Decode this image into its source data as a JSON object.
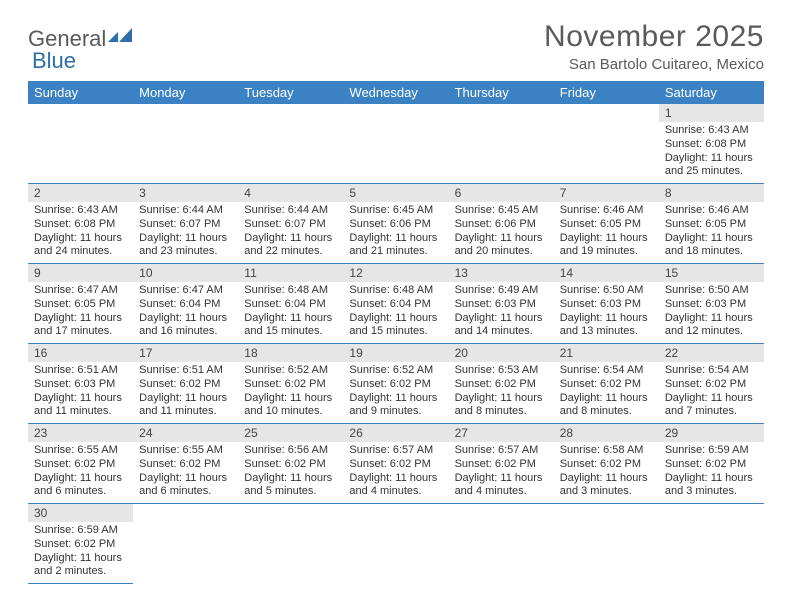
{
  "brand": {
    "part1": "General",
    "part2": "Blue"
  },
  "title": "November 2025",
  "location": "San Bartolo Cuitareo, Mexico",
  "colors": {
    "header_bg": "#3b82c4",
    "header_text": "#ffffff",
    "daynum_bg": "#e6e6e6",
    "border": "#3b82c4",
    "text": "#333333",
    "brand_gray": "#5a5a5a",
    "brand_blue": "#2f6fa8"
  },
  "weekdays": [
    "Sunday",
    "Monday",
    "Tuesday",
    "Wednesday",
    "Thursday",
    "Friday",
    "Saturday"
  ],
  "weeks": [
    [
      null,
      null,
      null,
      null,
      null,
      null,
      {
        "n": "1",
        "sr": "Sunrise: 6:43 AM",
        "ss": "Sunset: 6:08 PM",
        "d1": "Daylight: 11 hours",
        "d2": "and 25 minutes."
      }
    ],
    [
      {
        "n": "2",
        "sr": "Sunrise: 6:43 AM",
        "ss": "Sunset: 6:08 PM",
        "d1": "Daylight: 11 hours",
        "d2": "and 24 minutes."
      },
      {
        "n": "3",
        "sr": "Sunrise: 6:44 AM",
        "ss": "Sunset: 6:07 PM",
        "d1": "Daylight: 11 hours",
        "d2": "and 23 minutes."
      },
      {
        "n": "4",
        "sr": "Sunrise: 6:44 AM",
        "ss": "Sunset: 6:07 PM",
        "d1": "Daylight: 11 hours",
        "d2": "and 22 minutes."
      },
      {
        "n": "5",
        "sr": "Sunrise: 6:45 AM",
        "ss": "Sunset: 6:06 PM",
        "d1": "Daylight: 11 hours",
        "d2": "and 21 minutes."
      },
      {
        "n": "6",
        "sr": "Sunrise: 6:45 AM",
        "ss": "Sunset: 6:06 PM",
        "d1": "Daylight: 11 hours",
        "d2": "and 20 minutes."
      },
      {
        "n": "7",
        "sr": "Sunrise: 6:46 AM",
        "ss": "Sunset: 6:05 PM",
        "d1": "Daylight: 11 hours",
        "d2": "and 19 minutes."
      },
      {
        "n": "8",
        "sr": "Sunrise: 6:46 AM",
        "ss": "Sunset: 6:05 PM",
        "d1": "Daylight: 11 hours",
        "d2": "and 18 minutes."
      }
    ],
    [
      {
        "n": "9",
        "sr": "Sunrise: 6:47 AM",
        "ss": "Sunset: 6:05 PM",
        "d1": "Daylight: 11 hours",
        "d2": "and 17 minutes."
      },
      {
        "n": "10",
        "sr": "Sunrise: 6:47 AM",
        "ss": "Sunset: 6:04 PM",
        "d1": "Daylight: 11 hours",
        "d2": "and 16 minutes."
      },
      {
        "n": "11",
        "sr": "Sunrise: 6:48 AM",
        "ss": "Sunset: 6:04 PM",
        "d1": "Daylight: 11 hours",
        "d2": "and 15 minutes."
      },
      {
        "n": "12",
        "sr": "Sunrise: 6:48 AM",
        "ss": "Sunset: 6:04 PM",
        "d1": "Daylight: 11 hours",
        "d2": "and 15 minutes."
      },
      {
        "n": "13",
        "sr": "Sunrise: 6:49 AM",
        "ss": "Sunset: 6:03 PM",
        "d1": "Daylight: 11 hours",
        "d2": "and 14 minutes."
      },
      {
        "n": "14",
        "sr": "Sunrise: 6:50 AM",
        "ss": "Sunset: 6:03 PM",
        "d1": "Daylight: 11 hours",
        "d2": "and 13 minutes."
      },
      {
        "n": "15",
        "sr": "Sunrise: 6:50 AM",
        "ss": "Sunset: 6:03 PM",
        "d1": "Daylight: 11 hours",
        "d2": "and 12 minutes."
      }
    ],
    [
      {
        "n": "16",
        "sr": "Sunrise: 6:51 AM",
        "ss": "Sunset: 6:03 PM",
        "d1": "Daylight: 11 hours",
        "d2": "and 11 minutes."
      },
      {
        "n": "17",
        "sr": "Sunrise: 6:51 AM",
        "ss": "Sunset: 6:02 PM",
        "d1": "Daylight: 11 hours",
        "d2": "and 11 minutes."
      },
      {
        "n": "18",
        "sr": "Sunrise: 6:52 AM",
        "ss": "Sunset: 6:02 PM",
        "d1": "Daylight: 11 hours",
        "d2": "and 10 minutes."
      },
      {
        "n": "19",
        "sr": "Sunrise: 6:52 AM",
        "ss": "Sunset: 6:02 PM",
        "d1": "Daylight: 11 hours",
        "d2": "and 9 minutes."
      },
      {
        "n": "20",
        "sr": "Sunrise: 6:53 AM",
        "ss": "Sunset: 6:02 PM",
        "d1": "Daylight: 11 hours",
        "d2": "and 8 minutes."
      },
      {
        "n": "21",
        "sr": "Sunrise: 6:54 AM",
        "ss": "Sunset: 6:02 PM",
        "d1": "Daylight: 11 hours",
        "d2": "and 8 minutes."
      },
      {
        "n": "22",
        "sr": "Sunrise: 6:54 AM",
        "ss": "Sunset: 6:02 PM",
        "d1": "Daylight: 11 hours",
        "d2": "and 7 minutes."
      }
    ],
    [
      {
        "n": "23",
        "sr": "Sunrise: 6:55 AM",
        "ss": "Sunset: 6:02 PM",
        "d1": "Daylight: 11 hours",
        "d2": "and 6 minutes."
      },
      {
        "n": "24",
        "sr": "Sunrise: 6:55 AM",
        "ss": "Sunset: 6:02 PM",
        "d1": "Daylight: 11 hours",
        "d2": "and 6 minutes."
      },
      {
        "n": "25",
        "sr": "Sunrise: 6:56 AM",
        "ss": "Sunset: 6:02 PM",
        "d1": "Daylight: 11 hours",
        "d2": "and 5 minutes."
      },
      {
        "n": "26",
        "sr": "Sunrise: 6:57 AM",
        "ss": "Sunset: 6:02 PM",
        "d1": "Daylight: 11 hours",
        "d2": "and 4 minutes."
      },
      {
        "n": "27",
        "sr": "Sunrise: 6:57 AM",
        "ss": "Sunset: 6:02 PM",
        "d1": "Daylight: 11 hours",
        "d2": "and 4 minutes."
      },
      {
        "n": "28",
        "sr": "Sunrise: 6:58 AM",
        "ss": "Sunset: 6:02 PM",
        "d1": "Daylight: 11 hours",
        "d2": "and 3 minutes."
      },
      {
        "n": "29",
        "sr": "Sunrise: 6:59 AM",
        "ss": "Sunset: 6:02 PM",
        "d1": "Daylight: 11 hours",
        "d2": "and 3 minutes."
      }
    ],
    [
      {
        "n": "30",
        "sr": "Sunrise: 6:59 AM",
        "ss": "Sunset: 6:02 PM",
        "d1": "Daylight: 11 hours",
        "d2": "and 2 minutes."
      },
      null,
      null,
      null,
      null,
      null,
      null
    ]
  ]
}
